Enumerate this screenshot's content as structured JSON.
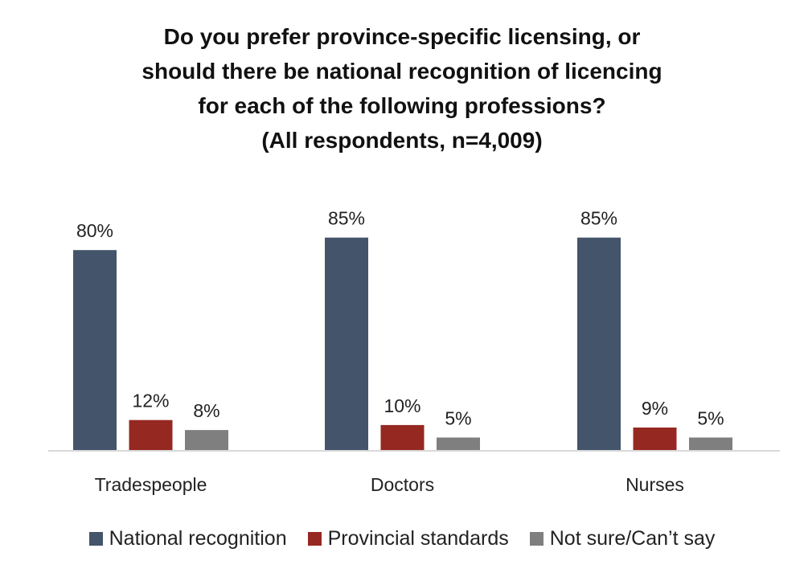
{
  "chart_data": {
    "type": "bar",
    "title_lines": [
      "Do you prefer province-specific licensing, or",
      "should there be national recognition of licencing",
      "for each of the following professions?",
      "(All respondents,  n=4,009)"
    ],
    "categories": [
      "Tradespeople",
      "Doctors",
      "Nurses"
    ],
    "series": [
      {
        "name": "National recognition",
        "values": [
          80,
          85,
          85
        ],
        "color": "#44546A"
      },
      {
        "name": "Provincial standards",
        "values": [
          12,
          10,
          9
        ],
        "color": "#962822"
      },
      {
        "name": "Not sure/Can’t say",
        "values": [
          8,
          5,
          5
        ],
        "color": "#7F7F7F"
      }
    ],
    "value_format": "{v}%",
    "ylim": [
      0,
      100
    ],
    "grid": false,
    "legend_placement": "bottom"
  }
}
